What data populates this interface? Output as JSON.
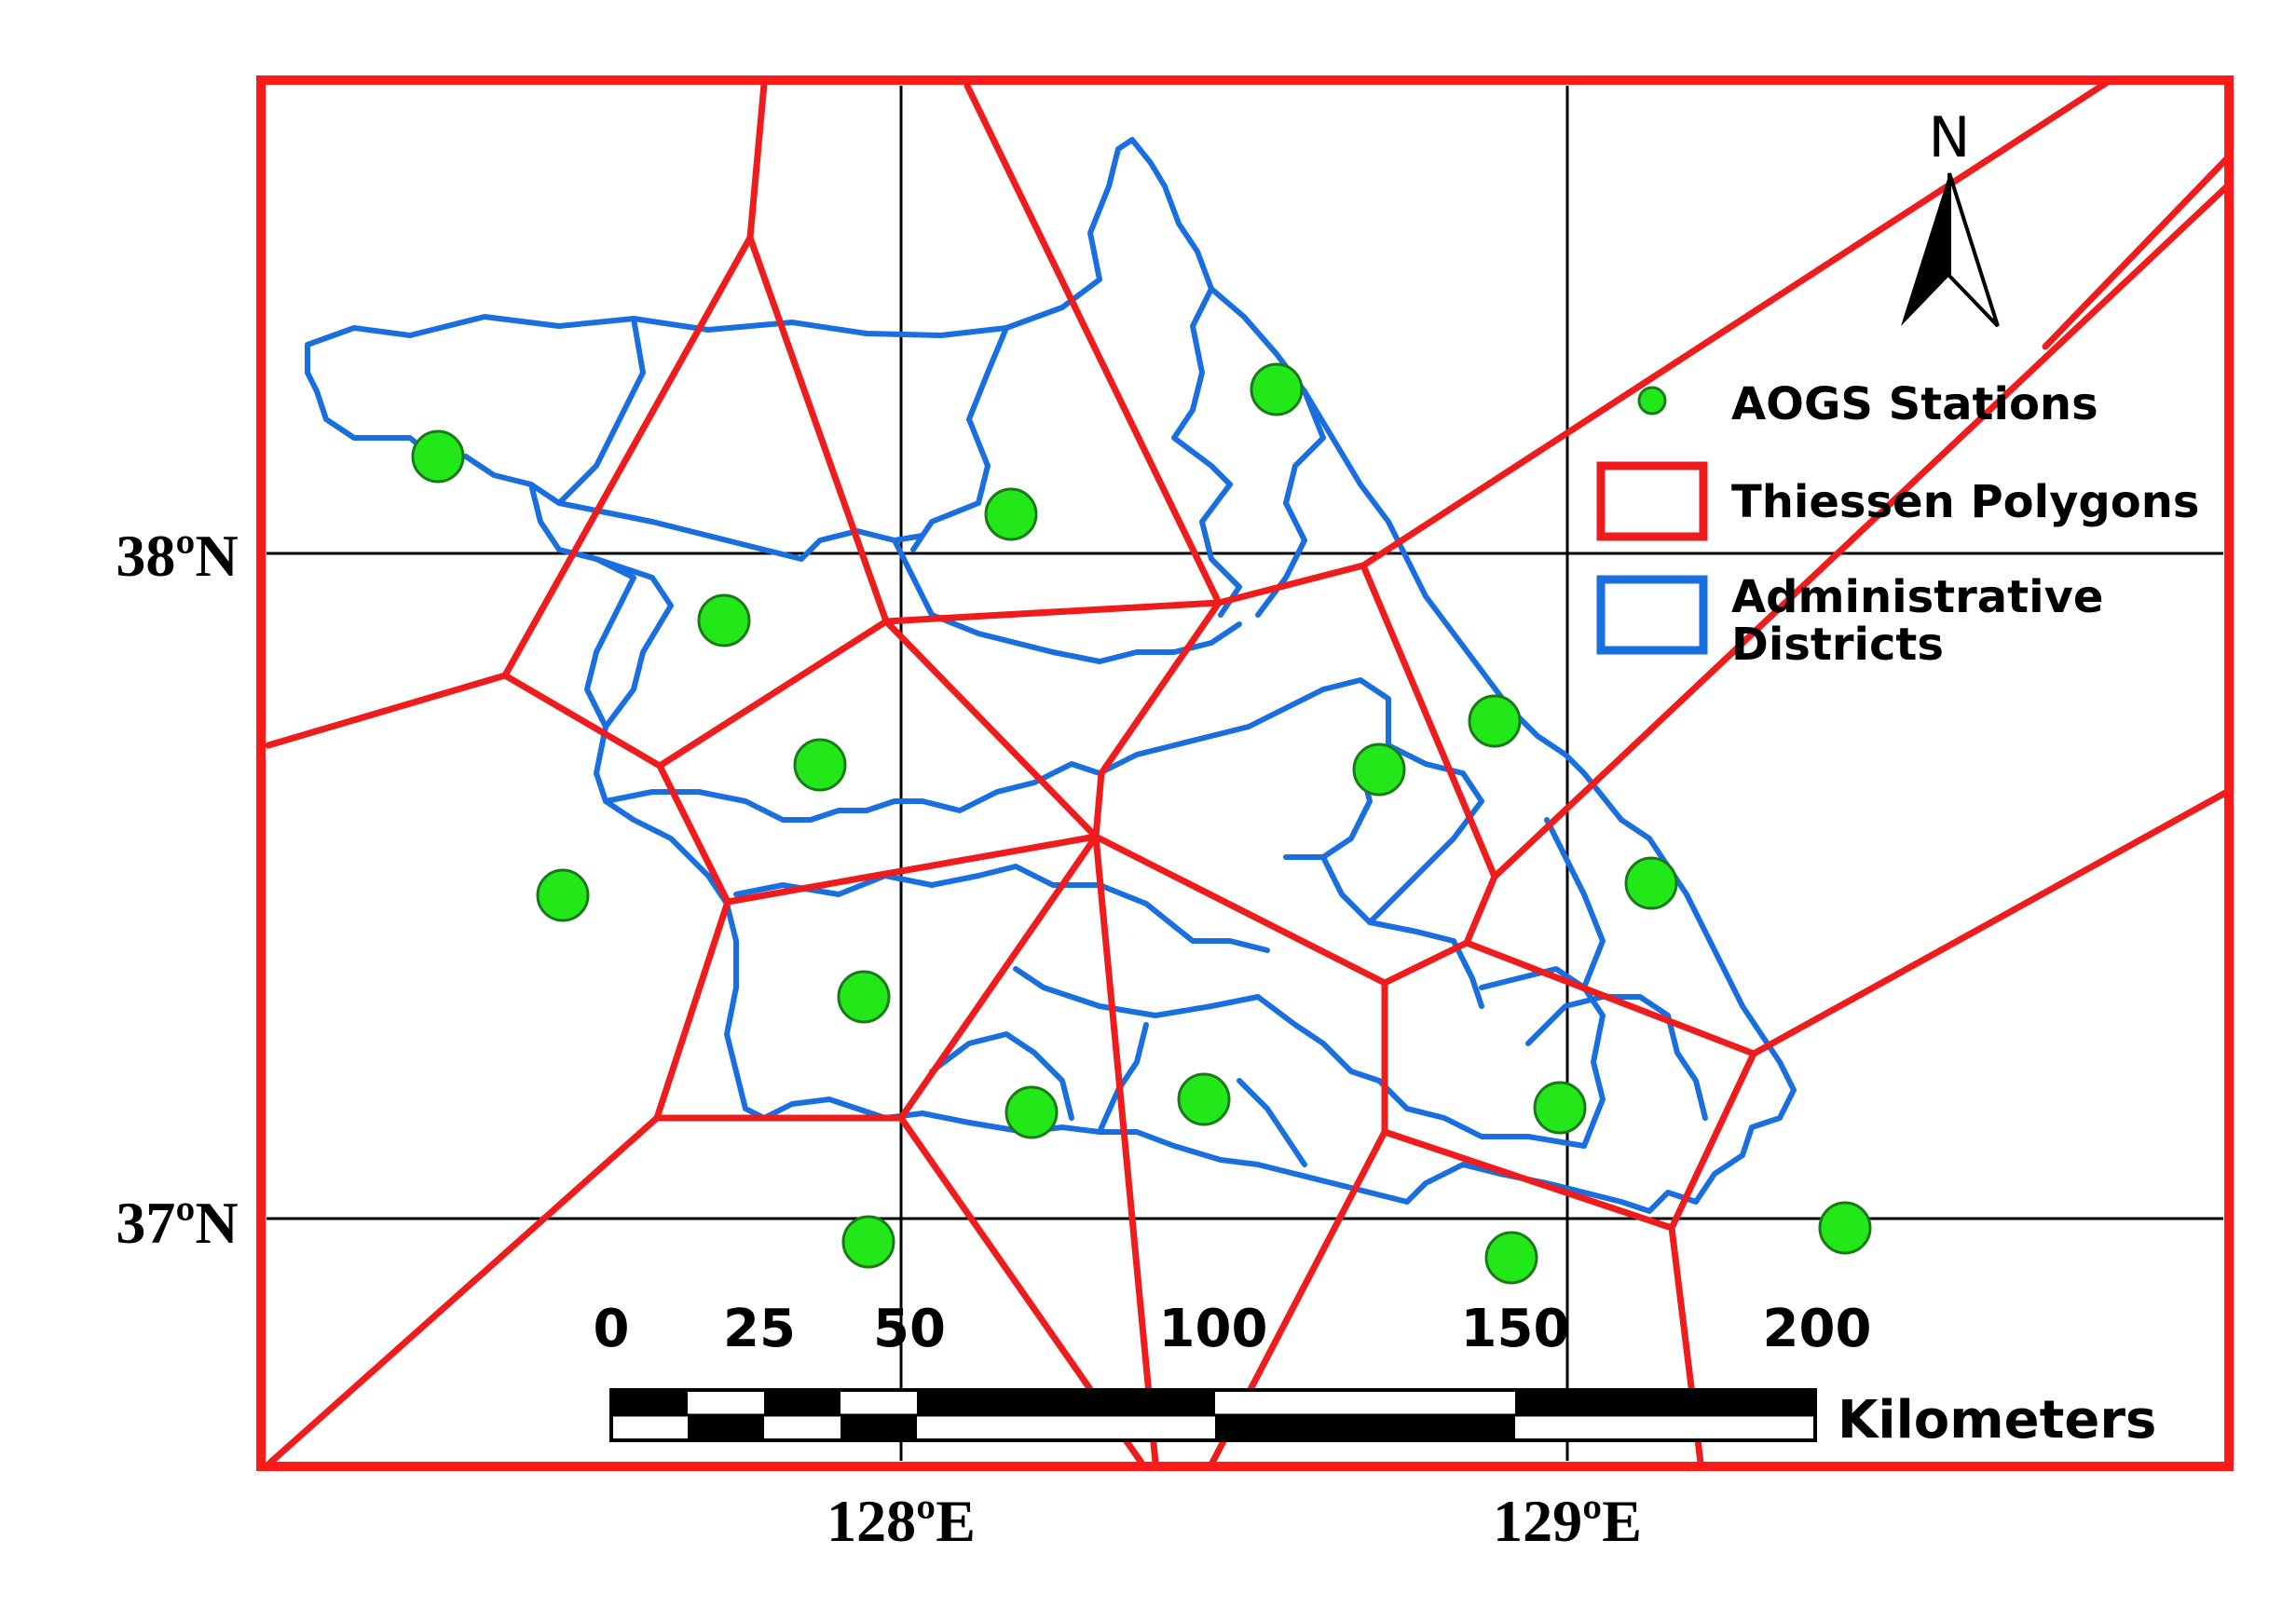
{
  "map": {
    "latitude_labels": [
      "38ºN",
      "37ºN"
    ],
    "longitude_labels": [
      "128ºE",
      "129ºE"
    ],
    "north_arrow_label": "N",
    "scale_bar": {
      "ticks": [
        "0",
        "25",
        "50",
        "100",
        "150",
        "200"
      ],
      "unit": "Kilometers"
    },
    "legend": {
      "stations": "AOGS Stations",
      "polygons": "Thiessen Polygons",
      "districts_line1": "Administrative",
      "districts_line2": "Districts"
    },
    "colors": {
      "frame": "#ff1a1a",
      "thiessen": "#ee1c1c",
      "districts": "#1a6fe0",
      "station_fill": "#22e81a",
      "station_stroke": "#1a7a1a",
      "graticule": "#000000"
    }
  }
}
